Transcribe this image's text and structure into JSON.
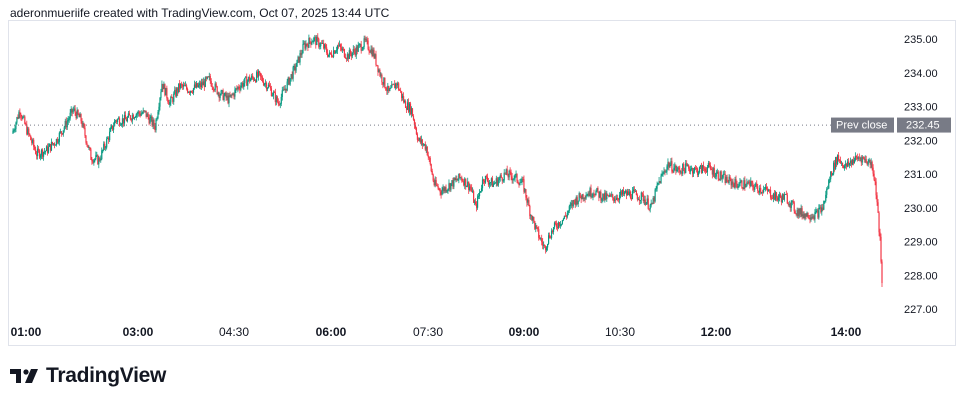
{
  "header": {
    "attribution": "aderonmueriife created with TradingView.com, Oct 07, 2025 13:44 UTC"
  },
  "logo": {
    "text": "TradingView"
  },
  "colors": {
    "up": "#089981",
    "down": "#f23645",
    "grid_text": "#131722",
    "prev_close_label": "#787b86"
  },
  "chart_data": {
    "type": "candlestick",
    "title": "",
    "x_ticks": [
      {
        "label": "01:00",
        "bold": true
      },
      {
        "label": "03:00",
        "bold": true
      },
      {
        "label": "04:30",
        "bold": false
      },
      {
        "label": "06:00",
        "bold": true
      },
      {
        "label": "07:30",
        "bold": false
      },
      {
        "label": "09:00",
        "bold": true
      },
      {
        "label": "10:30",
        "bold": false
      },
      {
        "label": "12:00",
        "bold": true
      },
      {
        "label": "14:00",
        "bold": true
      }
    ],
    "y_ticks": [
      "235.00",
      "234.00",
      "233.00",
      "232.00",
      "231.00",
      "230.00",
      "229.00",
      "228.00",
      "227.00"
    ],
    "ylim": [
      226.7,
      235.25
    ],
    "prev_close": {
      "label": "Prev close",
      "value": "232.45"
    },
    "close_path": [
      [
        0,
        232.2
      ],
      [
        8,
        232.9
      ],
      [
        15,
        232.3
      ],
      [
        25,
        231.6
      ],
      [
        35,
        231.7
      ],
      [
        45,
        232.0
      ],
      [
        55,
        232.5
      ],
      [
        62,
        232.9
      ],
      [
        70,
        232.6
      ],
      [
        80,
        231.5
      ],
      [
        88,
        231.4
      ],
      [
        95,
        231.9
      ],
      [
        105,
        232.6
      ],
      [
        115,
        232.6
      ],
      [
        125,
        232.8
      ],
      [
        135,
        232.8
      ],
      [
        145,
        232.4
      ],
      [
        152,
        233.7
      ],
      [
        160,
        233.1
      ],
      [
        170,
        233.6
      ],
      [
        180,
        233.5
      ],
      [
        190,
        233.6
      ],
      [
        200,
        233.8
      ],
      [
        210,
        233.4
      ],
      [
        220,
        233.2
      ],
      [
        230,
        233.6
      ],
      [
        240,
        233.8
      ],
      [
        250,
        233.9
      ],
      [
        260,
        233.6
      ],
      [
        270,
        233.1
      ],
      [
        278,
        233.6
      ],
      [
        288,
        234.2
      ],
      [
        296,
        234.8
      ],
      [
        305,
        235.0
      ],
      [
        315,
        234.8
      ],
      [
        322,
        234.5
      ],
      [
        330,
        234.8
      ],
      [
        340,
        234.5
      ],
      [
        350,
        234.7
      ],
      [
        358,
        234.9
      ],
      [
        366,
        234.6
      ],
      [
        374,
        233.9
      ],
      [
        382,
        233.4
      ],
      [
        390,
        233.7
      ],
      [
        398,
        233.1
      ],
      [
        405,
        232.9
      ],
      [
        412,
        232.0
      ],
      [
        420,
        231.8
      ],
      [
        428,
        230.7
      ],
      [
        435,
        230.5
      ],
      [
        445,
        230.7
      ],
      [
        455,
        230.9
      ],
      [
        465,
        230.6
      ],
      [
        470,
        230.0
      ],
      [
        478,
        230.9
      ],
      [
        488,
        230.7
      ],
      [
        500,
        231.0
      ],
      [
        510,
        230.9
      ],
      [
        518,
        230.7
      ],
      [
        525,
        229.9
      ],
      [
        532,
        229.3
      ],
      [
        540,
        228.8
      ],
      [
        545,
        229.2
      ],
      [
        552,
        229.5
      ],
      [
        560,
        229.7
      ],
      [
        570,
        230.2
      ],
      [
        580,
        230.4
      ],
      [
        590,
        230.5
      ],
      [
        600,
        230.3
      ],
      [
        610,
        230.3
      ],
      [
        620,
        230.4
      ],
      [
        630,
        230.4
      ],
      [
        640,
        230.3
      ],
      [
        648,
        230.0
      ],
      [
        655,
        230.7
      ],
      [
        665,
        231.3
      ],
      [
        675,
        231.1
      ],
      [
        685,
        231.2
      ],
      [
        695,
        231.1
      ],
      [
        705,
        231.2
      ],
      [
        715,
        231.0
      ],
      [
        725,
        230.8
      ],
      [
        735,
        230.7
      ],
      [
        745,
        230.7
      ],
      [
        755,
        230.6
      ],
      [
        765,
        230.5
      ],
      [
        775,
        230.3
      ],
      [
        785,
        230.3
      ],
      [
        795,
        229.9
      ],
      [
        805,
        229.8
      ],
      [
        815,
        229.8
      ],
      [
        822,
        230.0
      ],
      [
        830,
        231.0
      ],
      [
        837,
        231.5
      ],
      [
        845,
        231.2
      ],
      [
        852,
        231.4
      ],
      [
        860,
        231.5
      ],
      [
        866,
        231.4
      ],
      [
        872,
        231.3
      ],
      [
        876,
        230.5
      ],
      [
        880,
        229.0
      ],
      [
        882,
        227.7
      ]
    ]
  }
}
